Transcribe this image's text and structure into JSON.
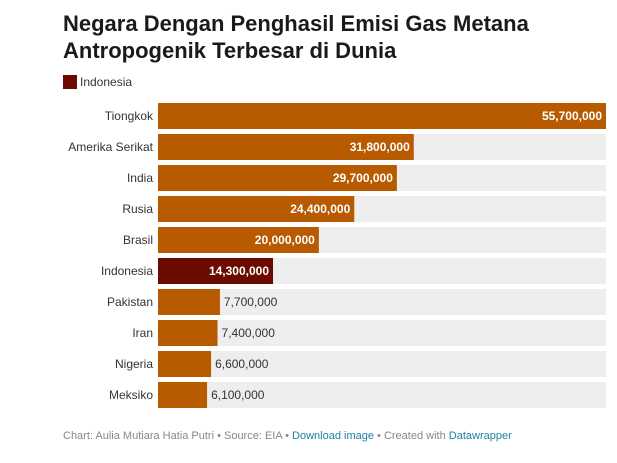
{
  "title_line1": "Negara Dengan Penghasil Emisi Gas Metana",
  "title_line2": "Antropogenik Terbesar di Dunia",
  "legend": {
    "label": "Indonesia",
    "color": "#6b0b00"
  },
  "colors": {
    "bar": "#b85a00",
    "highlight": "#6b0b00",
    "track": "#eeeeee",
    "label_inside": "#ffffff",
    "label_outside": "#333333",
    "link": "#1d81a2"
  },
  "chart_data": {
    "type": "bar",
    "orientation": "horizontal",
    "title": "Negara Dengan Penghasil Emisi Gas Metana Antropogenik Terbesar di Dunia",
    "categories": [
      "Tiongkok",
      "Amerika Serikat",
      "India",
      "Rusia",
      "Brasil",
      "Indonesia",
      "Pakistan",
      "Iran",
      "Nigeria",
      "Meksiko"
    ],
    "values": [
      55700000,
      31800000,
      29700000,
      24400000,
      20000000,
      14300000,
      7700000,
      7400000,
      6600000,
      6100000
    ],
    "value_labels": [
      "55,700,000",
      "31,800,000",
      "29,700,000",
      "24,400,000",
      "20,000,000",
      "14,300,000",
      "7,700,000",
      "7,400,000",
      "6,600,000",
      "6,100,000"
    ],
    "highlight": "Indonesia",
    "xlim": [
      0,
      55700000
    ],
    "grid": false,
    "legend_position": "top-left"
  },
  "footer": {
    "credit": "Chart: Aulia Mutiara Hatia Putri",
    "separator": " • ",
    "source": "Source: EIA",
    "download_label": "Download image",
    "created_prefix": "Created with ",
    "created_link": "Datawrapper"
  }
}
